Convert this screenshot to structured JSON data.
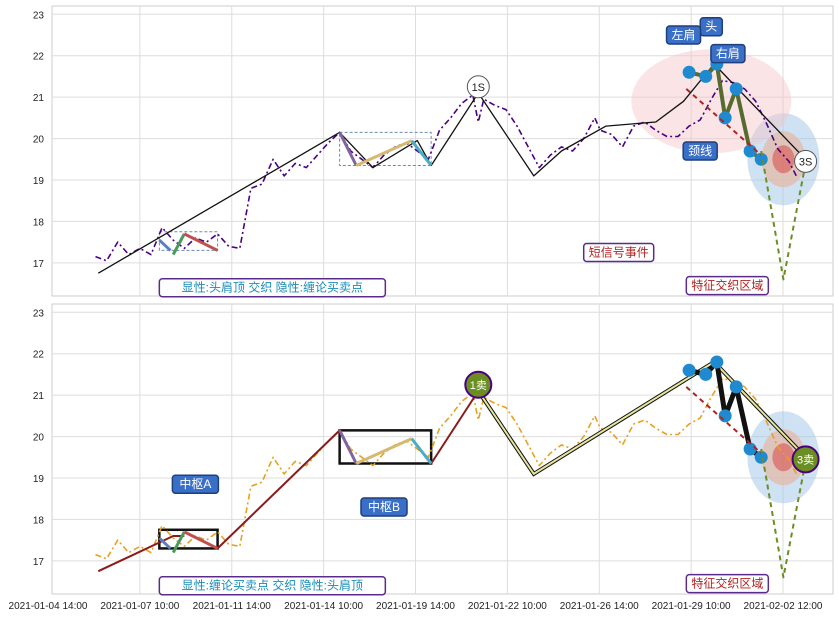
{
  "chart_data": [
    {
      "type": "line",
      "ylim": [
        16.2,
        23.2
      ],
      "yticks": [
        "17",
        "18",
        "19",
        "20",
        "21",
        "22",
        "23"
      ],
      "grid": true,
      "series": [
        {
          "style": "dashdot",
          "color": "#4b0082",
          "points": [
            [
              0.2,
              17.15
            ],
            [
              0.6,
              17.05
            ],
            [
              1.0,
              17.5
            ],
            [
              1.4,
              17.2
            ],
            [
              1.8,
              17.35
            ],
            [
              2.2,
              17.2
            ],
            [
              2.6,
              17.85
            ],
            [
              3.0,
              17.55
            ],
            [
              3.4,
              17.35
            ],
            [
              3.8,
              17.6
            ],
            [
              4.2,
              17.5
            ],
            [
              4.6,
              17.7
            ],
            [
              5.0,
              17.4
            ],
            [
              5.4,
              17.35
            ],
            [
              5.8,
              18.8
            ],
            [
              6.2,
              18.9
            ],
            [
              6.6,
              19.5
            ],
            [
              7.0,
              19.1
            ],
            [
              7.4,
              19.4
            ],
            [
              7.8,
              19.3
            ],
            [
              8.2,
              19.6
            ],
            [
              8.6,
              19.9
            ],
            [
              9.0,
              20.15
            ],
            [
              9.4,
              19.7
            ],
            [
              9.8,
              19.5
            ],
            [
              10.2,
              19.3
            ],
            [
              10.6,
              19.6
            ],
            [
              11.0,
              19.8
            ],
            [
              11.4,
              19.9
            ],
            [
              11.8,
              19.7
            ],
            [
              12.2,
              19.5
            ],
            [
              12.6,
              20.2
            ],
            [
              13.0,
              20.5
            ],
            [
              13.4,
              20.85
            ],
            [
              13.8,
              21.05
            ],
            [
              14.0,
              20.4
            ],
            [
              14.2,
              20.95
            ],
            [
              14.6,
              20.8
            ],
            [
              15.0,
              20.7
            ],
            [
              15.4,
              20.3
            ],
            [
              15.8,
              19.8
            ],
            [
              16.2,
              19.3
            ],
            [
              16.6,
              19.6
            ],
            [
              17.0,
              19.8
            ],
            [
              17.4,
              19.7
            ],
            [
              17.8,
              20.0
            ],
            [
              18.2,
              20.5
            ],
            [
              18.4,
              20.2
            ],
            [
              18.8,
              20.1
            ],
            [
              19.2,
              19.8
            ],
            [
              19.6,
              20.3
            ],
            [
              20.0,
              20.4
            ],
            [
              20.4,
              20.2
            ],
            [
              20.8,
              20.05
            ],
            [
              21.2,
              20.05
            ],
            [
              21.6,
              20.3
            ],
            [
              22.0,
              20.45
            ],
            [
              22.4,
              20.95
            ],
            [
              22.8,
              21.4
            ],
            [
              23.2,
              21.35
            ],
            [
              23.6,
              21.2
            ],
            [
              24.0,
              20.9
            ],
            [
              24.4,
              20.35
            ],
            [
              24.8,
              19.75
            ],
            [
              25.2,
              19.45
            ],
            [
              25.5,
              19.05
            ]
          ]
        },
        {
          "style": "solid",
          "color": "#111111",
          "points": [
            [
              0.3,
              16.75
            ],
            [
              9.0,
              20.15
            ],
            [
              10.2,
              19.3
            ],
            [
              11.8,
              19.95
            ],
            [
              12.3,
              19.35
            ],
            [
              14.0,
              21.1
            ],
            [
              16.0,
              19.1
            ],
            [
              17.0,
              19.7
            ],
            [
              18.6,
              20.3
            ],
            [
              20.4,
              20.4
            ],
            [
              21.4,
              20.9
            ],
            [
              22.5,
              21.8
            ],
            [
              25.8,
              19.5
            ]
          ]
        },
        {
          "style": "pattern",
          "color": "#556b2f",
          "width": 4,
          "points": [
            [
              21.6,
              21.6
            ],
            [
              22.2,
              21.5
            ],
            [
              22.6,
              21.8
            ],
            [
              22.9,
              20.5
            ],
            [
              23.3,
              21.2
            ],
            [
              23.8,
              19.7
            ],
            [
              24.2,
              19.5
            ]
          ]
        },
        {
          "style": "dashed",
          "color": "#b22222",
          "width": 2,
          "points": [
            [
              21.5,
              21.2
            ],
            [
              24.2,
              19.6
            ]
          ]
        },
        {
          "style": "dashed",
          "color": "#6b8e23",
          "width": 2,
          "points": [
            [
              24.2,
              19.7
            ],
            [
              25.0,
              16.6
            ],
            [
              25.8,
              19.4
            ]
          ]
        }
      ],
      "markers": [
        {
          "label": "1S",
          "x": 14.0,
          "y": 21.25
        },
        {
          "label": "3S",
          "x": 25.8,
          "y": 19.45
        }
      ],
      "boxes": [
        {
          "x0": 2.5,
          "x1": 4.6,
          "y0": 17.3,
          "y1": 17.75
        },
        {
          "x0": 9.0,
          "x1": 12.3,
          "y0": 19.35,
          "y1": 20.15
        }
      ],
      "annotations": [
        {
          "text": "头",
          "x": 22.4,
          "y": 22.7,
          "style": "blue"
        },
        {
          "text": "左肩",
          "x": 21.4,
          "y": 22.5,
          "style": "blue"
        },
        {
          "text": "右肩",
          "x": 23.0,
          "y": 22.05,
          "style": "blue"
        },
        {
          "text": "颈线",
          "x": 22.0,
          "y": 19.7,
          "style": "blue"
        },
        {
          "text": "短信号事件",
          "x": 17.8,
          "y": 17.25,
          "style": "purple"
        },
        {
          "text": "特征交织区域",
          "x": 21.5,
          "y": 16.45,
          "style": "purple"
        },
        {
          "text": "显性:头肩顶 交织 隐性:缠论买卖点",
          "x": 2.5,
          "y": 16.4,
          "style": "purple"
        }
      ]
    },
    {
      "type": "line",
      "ylim": [
        16.2,
        23.2
      ],
      "yticks": [
        "17",
        "18",
        "19",
        "20",
        "21",
        "22",
        "23"
      ],
      "grid": true,
      "x_tick_labels": [
        "2021-01-04 14:00",
        "2021-01-07 10:00",
        "2021-01-11 14:00",
        "2021-01-14 10:00",
        "2021-01-19 14:00",
        "2021-01-22 10:00",
        "2021-01-26 14:00",
        "2021-01-29 10:00",
        "2021-02-02 12:00"
      ],
      "series": [
        {
          "style": "dashdot",
          "color": "#e8a020",
          "points": [
            [
              0.2,
              17.15
            ],
            [
              0.6,
              17.05
            ],
            [
              1.0,
              17.5
            ],
            [
              1.4,
              17.2
            ],
            [
              1.8,
              17.35
            ],
            [
              2.2,
              17.2
            ],
            [
              2.6,
              17.85
            ],
            [
              3.0,
              17.55
            ],
            [
              3.4,
              17.35
            ],
            [
              3.8,
              17.6
            ],
            [
              4.2,
              17.5
            ],
            [
              4.6,
              17.7
            ],
            [
              5.0,
              17.4
            ],
            [
              5.4,
              17.35
            ],
            [
              5.8,
              18.8
            ],
            [
              6.2,
              18.9
            ],
            [
              6.6,
              19.5
            ],
            [
              7.0,
              19.1
            ],
            [
              7.4,
              19.4
            ],
            [
              7.8,
              19.3
            ],
            [
              8.2,
              19.6
            ],
            [
              8.6,
              19.9
            ],
            [
              9.0,
              20.15
            ],
            [
              9.4,
              19.7
            ],
            [
              9.8,
              19.5
            ],
            [
              10.2,
              19.3
            ],
            [
              10.6,
              19.6
            ],
            [
              11.0,
              19.8
            ],
            [
              11.4,
              19.9
            ],
            [
              11.8,
              19.7
            ],
            [
              12.2,
              19.5
            ],
            [
              12.6,
              20.2
            ],
            [
              13.0,
              20.5
            ],
            [
              13.4,
              20.85
            ],
            [
              13.8,
              21.05
            ],
            [
              14.0,
              20.4
            ],
            [
              14.2,
              20.95
            ],
            [
              14.6,
              20.8
            ],
            [
              15.0,
              20.7
            ],
            [
              15.4,
              20.3
            ],
            [
              15.8,
              19.8
            ],
            [
              16.2,
              19.3
            ],
            [
              16.6,
              19.6
            ],
            [
              17.0,
              19.8
            ],
            [
              17.4,
              19.7
            ],
            [
              17.8,
              20.0
            ],
            [
              18.2,
              20.5
            ],
            [
              18.4,
              20.2
            ],
            [
              18.8,
              20.1
            ],
            [
              19.2,
              19.8
            ],
            [
              19.6,
              20.3
            ],
            [
              20.0,
              20.4
            ],
            [
              20.4,
              20.2
            ],
            [
              20.8,
              20.05
            ],
            [
              21.2,
              20.05
            ],
            [
              21.6,
              20.3
            ],
            [
              22.0,
              20.45
            ],
            [
              22.4,
              20.95
            ],
            [
              22.8,
              21.4
            ],
            [
              23.2,
              21.35
            ],
            [
              23.6,
              21.2
            ],
            [
              24.0,
              20.9
            ],
            [
              24.4,
              20.35
            ],
            [
              24.8,
              19.75
            ],
            [
              25.2,
              19.45
            ],
            [
              25.5,
              19.05
            ]
          ]
        },
        {
          "style": "stroke",
          "color": "#8b1a1a",
          "points": [
            [
              0.3,
              16.75
            ],
            [
              3.0,
              17.6
            ],
            [
              3.4,
              17.6
            ]
          ]
        },
        {
          "style": "stroke",
          "color": "#8b1a1a",
          "points": [
            [
              4.6,
              17.3
            ],
            [
              9.0,
              20.15
            ]
          ]
        },
        {
          "style": "stroke",
          "color": "#8b1a1a",
          "points": [
            [
              12.3,
              19.35
            ],
            [
              14.0,
              21.1
            ]
          ]
        },
        {
          "style": "highlight",
          "color": "#556b2f",
          "points": [
            [
              14.0,
              21.1
            ],
            [
              16.0,
              19.1
            ],
            [
              22.5,
              21.8
            ],
            [
              25.8,
              19.5
            ]
          ]
        },
        {
          "style": "pattern",
          "color": "#111111",
          "width": 5,
          "points": [
            [
              21.6,
              21.6
            ],
            [
              22.2,
              21.5
            ],
            [
              22.6,
              21.8
            ],
            [
              22.9,
              20.5
            ],
            [
              23.3,
              21.2
            ],
            [
              23.8,
              19.7
            ],
            [
              24.2,
              19.5
            ]
          ]
        },
        {
          "style": "dashed",
          "color": "#b22222",
          "width": 2,
          "points": [
            [
              21.5,
              21.2
            ],
            [
              24.2,
              19.6
            ]
          ]
        },
        {
          "style": "dashed",
          "color": "#6b8e23",
          "width": 2,
          "points": [
            [
              24.2,
              19.7
            ],
            [
              25.0,
              16.6
            ],
            [
              25.8,
              19.4
            ]
          ]
        }
      ],
      "markers": [
        {
          "label": "1卖",
          "x": 14.0,
          "y": 21.25
        },
        {
          "label": "3卖",
          "x": 25.8,
          "y": 19.45
        }
      ],
      "boxes": [
        {
          "x0": 2.5,
          "x1": 4.6,
          "y0": 17.3,
          "y1": 17.75
        },
        {
          "x0": 9.0,
          "x1": 12.3,
          "y0": 19.35,
          "y1": 20.15
        }
      ],
      "annotations": [
        {
          "text": "中枢A",
          "x": 3.8,
          "y": 18.85,
          "style": "blue"
        },
        {
          "text": "中枢B",
          "x": 10.6,
          "y": 18.3,
          "style": "blue"
        },
        {
          "text": "特征交织区域",
          "x": 21.5,
          "y": 16.45,
          "style": "purple"
        },
        {
          "text": "显性:缠论买卖点 交织 隐性:头肩顶",
          "x": 2.5,
          "y": 16.4,
          "style": "purple"
        }
      ]
    }
  ]
}
